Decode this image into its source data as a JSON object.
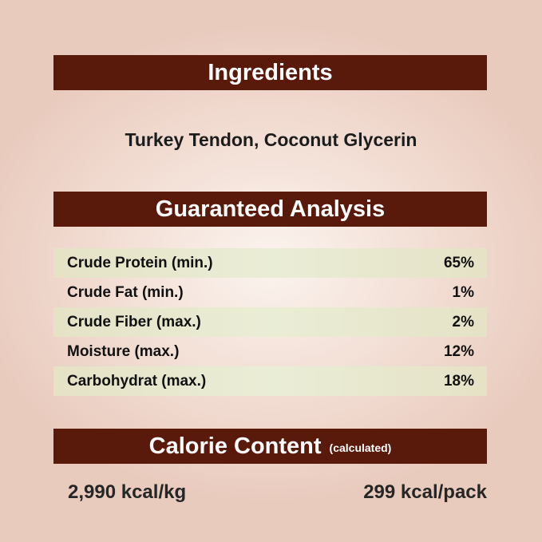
{
  "ingredients": {
    "title": "Ingredients",
    "text": "Turkey Tendon, Coconut Glycerin"
  },
  "analysis": {
    "title": "Guaranteed Analysis",
    "rows": [
      {
        "label": "Crude Protein (min.)",
        "value": "65%"
      },
      {
        "label": "Crude Fat (min.)",
        "value": "1%"
      },
      {
        "label": "Crude Fiber (max.)",
        "value": "2%"
      },
      {
        "label": "Moisture (max.)",
        "value": "12%"
      },
      {
        "label": "Carbohydrat (max.)",
        "value": "18%"
      }
    ]
  },
  "calorie": {
    "title": "Calorie Content",
    "subtitle": "(calculated)",
    "per_kg": "2,990 kcal/kg",
    "per_pack": "299 kcal/pack"
  },
  "colors": {
    "header_bar": "#5a1a0b",
    "row_stripe": "#e6e3c8"
  }
}
